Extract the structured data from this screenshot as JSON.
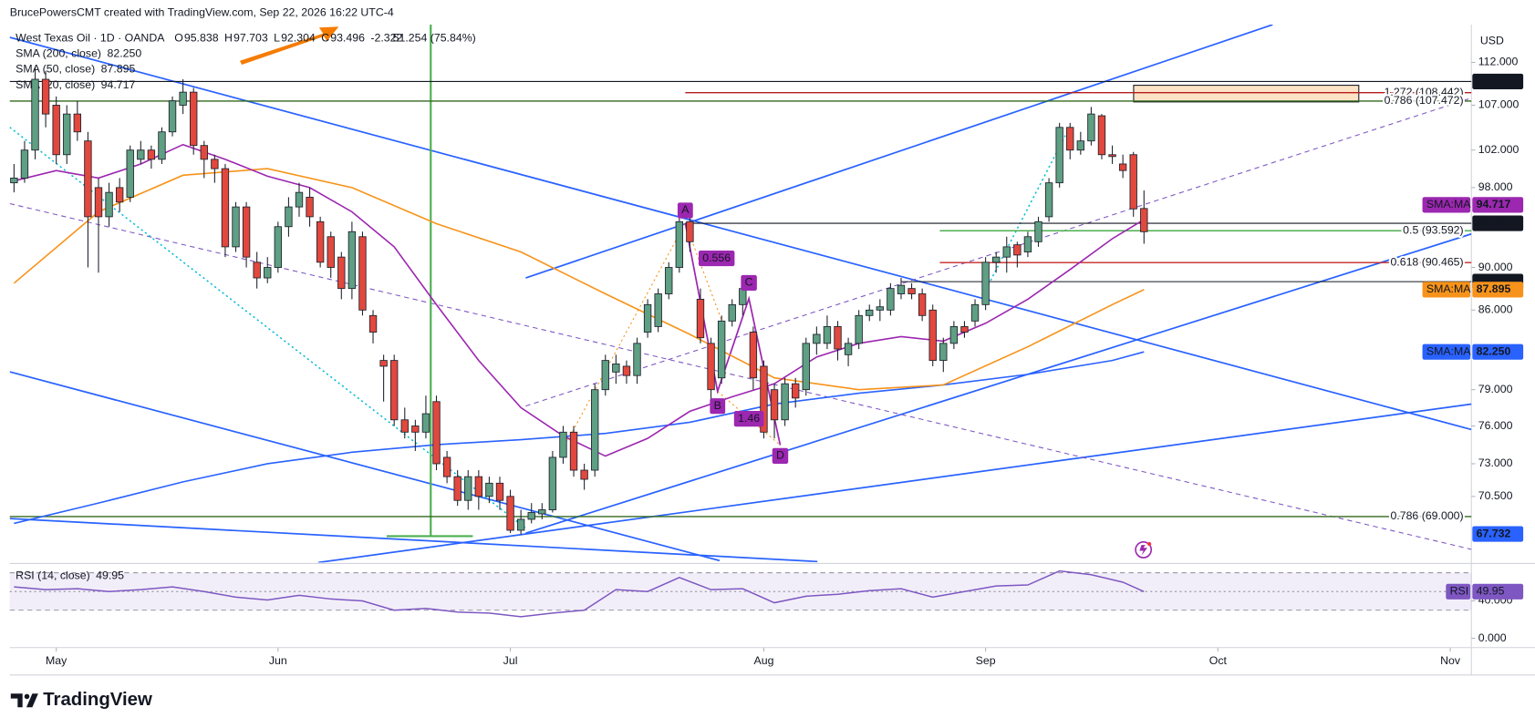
{
  "chart_data": {
    "type": "candlestick",
    "attribution": "BrucePowersCMT created with TradingView.com, Sep 22, 2026 16:22 UTC-4",
    "title": "West Texas Oil · 1D · OANDA",
    "ohlc_prefixes": [
      "O",
      "H",
      "L",
      "C"
    ],
    "change": -2.322,
    "overlay_text": "51.254 (75.84%)",
    "currency": "USD",
    "brand": "TradingView",
    "log_scale": true,
    "grid": false,
    "up_color": "#5f9f84",
    "down_color": "#e2483d",
    "xlim": [
      -0.4,
      138
    ],
    "xticks": [
      {
        "value": 4,
        "label": "May"
      },
      {
        "value": 25,
        "label": "Jun"
      },
      {
        "value": 47,
        "label": "Jul"
      },
      {
        "value": 71,
        "label": "Aug"
      },
      {
        "value": 92,
        "label": "Sep"
      },
      {
        "value": 114,
        "label": "Oct"
      },
      {
        "value": 136,
        "label": "Nov"
      }
    ],
    "ylim": [
      65.7,
      116.6
    ],
    "yticks": [
      {
        "value": 112,
        "label": "112.000"
      },
      {
        "value": 107,
        "label": "107.000"
      },
      {
        "value": 102,
        "label": "102.000"
      },
      {
        "value": 98,
        "label": "98.000"
      },
      {
        "value": 90,
        "label": "90.000"
      },
      {
        "value": 86,
        "label": "86.000"
      },
      {
        "value": 79,
        "label": "79.000"
      },
      {
        "value": 76,
        "label": "76.000"
      },
      {
        "value": 73,
        "label": "73.000"
      },
      {
        "value": 70.5,
        "label": "70.500"
      }
    ],
    "candles": {
      "open": [
        98.5,
        99,
        102,
        110,
        107,
        101.5,
        106,
        103,
        98,
        95,
        98,
        97,
        101,
        102,
        101,
        104,
        107,
        108.5,
        102.5,
        101,
        100,
        92,
        96,
        90.5,
        89,
        90,
        94,
        96,
        97,
        94.5,
        93,
        91,
        88,
        93,
        85.5,
        81.5,
        81.5,
        76.5,
        76,
        75.5,
        78,
        73.5,
        72,
        70.2,
        72,
        70.5,
        71.5,
        70.5,
        68,
        68.8,
        69.2,
        69.5,
        73.5,
        75.5,
        72.5,
        72.5,
        79,
        80.5,
        81,
        80.2,
        84,
        84.5,
        87.5,
        90,
        94.5,
        87,
        83,
        80,
        85,
        86.5,
        84,
        81,
        79,
        76.5,
        79.5,
        79,
        83,
        83,
        84.5,
        82,
        83,
        85.5,
        86,
        86,
        87.5,
        88,
        87.5,
        86,
        81.5,
        83,
        84.5,
        85,
        86.5,
        90.5,
        91,
        92.2,
        91.5,
        92.5,
        95,
        98.5,
        104.5,
        102,
        103,
        105.8,
        101.5,
        100.5,
        101.5,
        95.838
      ],
      "high": [
        100.5,
        103,
        111.5,
        111,
        108,
        107,
        107.5,
        104,
        99,
        98.5,
        99,
        102.5,
        103,
        102.5,
        104.5,
        108,
        110,
        109,
        103,
        101.5,
        100.5,
        96.5,
        96.5,
        91.5,
        91,
        94.5,
        97,
        98.5,
        98,
        95,
        93.5,
        91.5,
        94.5,
        93.5,
        86,
        82,
        82,
        77.5,
        76.5,
        78.5,
        78.5,
        74,
        72.5,
        72.5,
        72.5,
        72,
        72,
        71,
        69.5,
        70,
        70,
        74,
        76,
        76,
        73,
        79.5,
        82,
        82,
        81.5,
        83.5,
        87,
        88,
        90.5,
        95.5,
        95,
        88,
        83.5,
        85.5,
        87,
        88.5,
        84.5,
        81.5,
        79.5,
        80,
        80,
        83.5,
        84.5,
        85.5,
        85,
        83.5,
        86,
        86.5,
        87,
        88.5,
        89,
        88.5,
        88,
        86.5,
        83.5,
        85,
        85,
        87,
        91,
        91.5,
        93,
        92.5,
        93.5,
        95,
        99,
        105,
        105,
        104,
        106.8,
        106,
        102.5,
        101.5,
        101.8,
        97.703
      ],
      "low": [
        97.5,
        98.5,
        101,
        104.5,
        100.5,
        100.5,
        103,
        90,
        89.5,
        94,
        95.5,
        96.5,
        100.5,
        100,
        100.5,
        103.5,
        106,
        101.5,
        99,
        98.5,
        91,
        91.5,
        90,
        88,
        88.5,
        89.5,
        93,
        95,
        94,
        90,
        89,
        87,
        87,
        85.5,
        83,
        78,
        76,
        75,
        74,
        75,
        72.5,
        71.5,
        69.8,
        69.5,
        69.5,
        70,
        69.5,
        67.8,
        67.7,
        68.5,
        68.8,
        69.3,
        73,
        72,
        71,
        72,
        78.5,
        79.5,
        79.5,
        79.5,
        83.5,
        84,
        87,
        89.5,
        91.5,
        83,
        78,
        79.5,
        84.5,
        85.5,
        79,
        75,
        75,
        76,
        77.5,
        78.5,
        82,
        82.5,
        81.5,
        81,
        82.5,
        85,
        85,
        85.5,
        87,
        87,
        85,
        81,
        80.5,
        82.5,
        83.5,
        84.5,
        86,
        89.5,
        89.5,
        90,
        91,
        92,
        94.5,
        98,
        101,
        101.5,
        102.5,
        101,
        100.5,
        99,
        95,
        92.304
      ],
      "close": [
        99,
        102,
        110,
        106,
        101.5,
        106,
        104,
        95,
        95,
        97.5,
        96.5,
        102,
        102,
        101,
        104,
        107.5,
        108.5,
        102.5,
        101,
        100,
        92,
        96,
        91,
        89,
        90,
        94,
        96,
        97.5,
        95,
        90.5,
        90,
        88,
        93.5,
        86,
        84,
        81,
        76.5,
        75.5,
        75.5,
        77,
        73,
        72,
        70.2,
        72,
        70.5,
        71.5,
        70.2,
        68,
        68.8,
        69.3,
        69.5,
        73.5,
        75.5,
        72.5,
        71.8,
        79,
        81.5,
        81.2,
        80.2,
        83,
        86.5,
        87.5,
        90,
        94.5,
        92.5,
        83.5,
        79,
        85,
        86.5,
        88,
        80,
        75.5,
        76.5,
        79.5,
        78.3,
        83,
        83.8,
        84.5,
        82.5,
        83,
        85.5,
        86,
        86.3,
        88,
        88.3,
        87.5,
        85.5,
        81.5,
        83,
        84.5,
        84,
        86.5,
        90.5,
        91,
        92,
        91.2,
        93,
        94.5,
        98.5,
        104.5,
        102,
        103,
        106,
        101.5,
        101.3,
        99.8,
        95.8,
        93.496
      ]
    },
    "series": [
      {
        "name": "SMA (200, close)",
        "color": "#2962ff",
        "tag": "SMA:MA",
        "value_label": "82.250",
        "x": [
          0,
          8,
          16,
          24,
          32,
          40,
          48,
          56,
          64,
          72,
          80,
          88,
          96,
          104,
          107
        ],
        "values": [
          68.5,
          70,
          71.6,
          73,
          73.9,
          74.5,
          74.9,
          75.4,
          76.3,
          77.8,
          78.7,
          79.4,
          80.3,
          81.5,
          82.25
        ]
      },
      {
        "name": "SMA (50, close)",
        "color": "#f7931a",
        "tag": "SMA:MA",
        "value_label": "87.895",
        "x": [
          0,
          8,
          16,
          24,
          32,
          40,
          48,
          56,
          64,
          72,
          80,
          88,
          96,
          104,
          107
        ],
        "values": [
          88.5,
          95.5,
          99.3,
          100,
          98,
          94.3,
          91.5,
          87.5,
          83.8,
          80,
          79,
          79.4,
          82.7,
          86.5,
          87.895
        ]
      },
      {
        "name": "SMA (20, close)",
        "color": "#9c27b0",
        "tag": "SMA:MA",
        "value_label": "94.717",
        "x": [
          0,
          4,
          8,
          12,
          16,
          20,
          24,
          28,
          32,
          36,
          40,
          44,
          48,
          52,
          56,
          60,
          64,
          68,
          72,
          76,
          80,
          84,
          88,
          92,
          96,
          100,
          104,
          107
        ],
        "values": [
          98.7,
          99.8,
          99,
          100.5,
          102.6,
          101,
          99.2,
          98,
          95.5,
          92,
          86.5,
          81.5,
          77.5,
          75.2,
          73.6,
          75,
          77.2,
          78.4,
          79.5,
          81.8,
          83,
          83.6,
          83.2,
          84.8,
          87,
          89.8,
          92.8,
          94.717
        ]
      }
    ],
    "price_tags": [
      {
        "value": 109.74,
        "label": "109.740",
        "color": "#131722",
        "line": true
      },
      {
        "value": 94.337,
        "label": "94.337",
        "color": "#131722",
        "line": true
      },
      {
        "value": 88.644,
        "label": "88.644",
        "color": "#131722",
        "line": true
      },
      {
        "value": 67.732,
        "label": "67.732",
        "color": "#2962ff",
        "line": false
      }
    ],
    "fib_levels": [
      {
        "value": 108.442,
        "label": "1.272 (108.442)",
        "color": "#b71c1c"
      },
      {
        "value": 107.472,
        "label": "0.786 (107.472)",
        "color": "#33691e"
      },
      {
        "value": 93.592,
        "label": "0.5 (93.592)",
        "color": "#4caf50"
      },
      {
        "value": 90.465,
        "label": "0.618 (90.465)",
        "color": "#c62828"
      },
      {
        "value": 69,
        "label": "0.786 (69.000)",
        "color": "#33691e"
      }
    ],
    "pattern_labels": [
      "A",
      "B",
      "C",
      "D",
      "0.556",
      "1.46"
    ],
    "rsi": {
      "name": "RSI (14, close)",
      "tag": "RSI",
      "color": "#7e57c2",
      "ylim": [
        -10,
        80
      ],
      "bands": [
        70,
        50,
        30
      ],
      "yticks": [
        {
          "value": 40,
          "label": "40.000"
        },
        {
          "value": 0,
          "label": "0.000"
        }
      ],
      "x": [
        0,
        3,
        6,
        9,
        12,
        15,
        18,
        21,
        24,
        27,
        30,
        33,
        36,
        39,
        42,
        45,
        48,
        51,
        54,
        57,
        60,
        63,
        66,
        69,
        72,
        75,
        78,
        81,
        84,
        87,
        90,
        93,
        96,
        99,
        102,
        105,
        107
      ],
      "values": [
        55,
        52,
        53,
        50,
        52,
        55,
        50,
        44,
        41,
        46,
        42,
        40,
        30,
        32,
        28,
        27,
        23,
        27,
        30,
        52,
        50,
        65,
        52,
        53,
        38,
        45,
        47,
        51,
        53,
        44,
        50,
        56,
        57,
        72,
        68,
        60,
        49.95
      ]
    }
  }
}
